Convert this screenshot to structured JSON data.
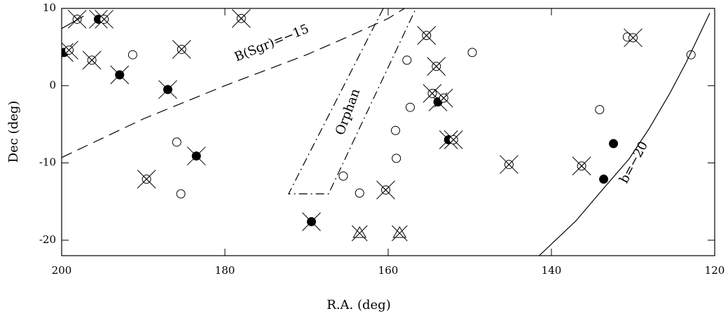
{
  "chart_data": {
    "type": "scatter",
    "xlabel": "R.A. (deg)",
    "ylabel": "Dec (deg)",
    "xlim": [
      200,
      120
    ],
    "ylim": [
      -22,
      10
    ],
    "xticks": [
      200,
      180,
      160,
      140,
      120
    ],
    "yticks": [
      10,
      0,
      -10,
      -20
    ],
    "annotations": [
      "B(Sgr)=−15",
      "Orphan",
      "b=−20"
    ],
    "series": [
      {
        "marker": "open",
        "color": "#000000",
        "x": [
          191.3,
          185.9,
          185.4,
          165.5,
          163.5,
          159.1,
          159.0,
          157.7,
          157.3,
          149.7,
          134.1,
          122.9,
          130.7
        ],
        "values": [
          4.0,
          -7.3,
          -14.0,
          -11.7,
          -13.9,
          -5.8,
          -9.4,
          3.3,
          -2.8,
          4.3,
          -3.1,
          4.0,
          6.3
        ]
      },
      {
        "marker": "filled",
        "color": "#000000",
        "x": [
          132.4,
          133.6
        ],
        "values": [
          -7.5,
          -12.1
        ]
      },
      {
        "marker": "filled-cross",
        "color": "#000000",
        "x": [
          199.7,
          195.5,
          192.9,
          187.0,
          183.5,
          169.4,
          153.9,
          152.6
        ],
        "values": [
          4.3,
          8.6,
          1.4,
          -0.5,
          -9.1,
          -17.6,
          -2.1,
          -7.0
        ]
      },
      {
        "marker": "open-cross",
        "color": "#000000",
        "x": [
          198.1,
          194.8,
          199.1,
          196.3,
          185.3,
          178.0,
          189.6,
          155.3,
          154.1,
          154.6,
          153.2,
          152.0,
          160.3,
          145.2,
          136.3,
          130.0
        ],
        "values": [
          8.6,
          8.6,
          4.6,
          3.3,
          4.7,
          8.7,
          -12.1,
          6.5,
          2.5,
          -1.0,
          -1.6,
          -7.0,
          -13.5,
          -10.2,
          -10.4,
          6.2
        ]
      },
      {
        "marker": "triangle-cross",
        "color": "#000000",
        "x": [
          163.5,
          158.6
        ],
        "values": [
          -19.1,
          -19.1
        ]
      },
      {
        "marker": "line",
        "style": "dash",
        "color": "#000000",
        "x": [
          200,
          190,
          180,
          175,
          170,
          165,
          160,
          158
        ],
        "values": [
          -9.3,
          -4.3,
          0.0,
          2.0,
          4.0,
          6.3,
          8.7,
          10
        ]
      },
      {
        "marker": "line",
        "style": "dashdot",
        "color": "#000000",
        "x": [
          160.6,
          172.2,
          167.3,
          156.6
        ],
        "values": [
          10,
          -14,
          -14,
          10
        ]
      },
      {
        "marker": "line",
        "style": "solid",
        "color": "#000000",
        "x": [
          141.5,
          137,
          133.7,
          130.5,
          128,
          125.5,
          123.5,
          120.6
        ],
        "values": [
          -22,
          -17.5,
          -13.4,
          -9.5,
          -5.5,
          -1,
          3,
          9.4
        ]
      },
      {
        "marker": "line",
        "style": "solid",
        "color": "#000000",
        "x": [
          200,
          197.3
        ],
        "values": [
          7.4,
          9.0
        ]
      }
    ]
  }
}
